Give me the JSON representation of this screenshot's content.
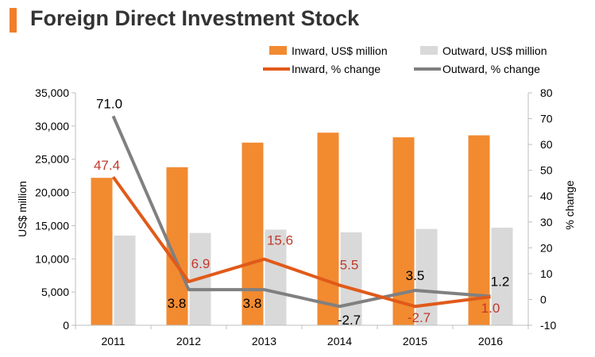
{
  "title": "Foreign Direct Investment Stock",
  "colors": {
    "accent": "#f07f2a",
    "inward_bar": "#f28a30",
    "outward_bar": "#d9d9d9",
    "inward_line": "#e05a1a",
    "outward_line": "#808080",
    "red_label": "#c0392b",
    "axis": "#bfbfbf"
  },
  "chart_data": {
    "type": "bar",
    "categories": [
      "2011",
      "2012",
      "2013",
      "2014",
      "2015",
      "2016"
    ],
    "ylabel": "US$ million",
    "y2label": "% change",
    "ylim": [
      0,
      35000
    ],
    "y2lim": [
      -10,
      80
    ],
    "yticks": [
      "0",
      "5,000",
      "10,000",
      "15,000",
      "20,000",
      "25,000",
      "30,000",
      "35,000"
    ],
    "y2ticks": [
      "-10",
      "0",
      "10",
      "20",
      "30",
      "40",
      "50",
      "60",
      "70",
      "80"
    ],
    "legend_position": "top-right",
    "series": [
      {
        "name": "Inward, US$ million",
        "kind": "bar",
        "values": [
          22200,
          23800,
          27500,
          29000,
          28300,
          28600
        ]
      },
      {
        "name": "Outward, US$ million",
        "kind": "bar",
        "values": [
          13500,
          13900,
          14400,
          14000,
          14500,
          14700
        ]
      },
      {
        "name": "Inward, % change",
        "kind": "line",
        "axis": "right",
        "values": [
          47.4,
          6.9,
          15.6,
          5.5,
          -2.7,
          1.0
        ],
        "labels": [
          "47.4",
          "6.9",
          "15.6",
          "5.5",
          "-2.7",
          "1.0"
        ]
      },
      {
        "name": "Outward, % change",
        "kind": "line",
        "axis": "right",
        "values": [
          71.0,
          3.8,
          3.8,
          -2.7,
          3.5,
          1.2
        ],
        "labels": [
          "71.0",
          "3.8",
          "3.8",
          "-2.7",
          "3.5",
          "1.2"
        ]
      }
    ]
  }
}
